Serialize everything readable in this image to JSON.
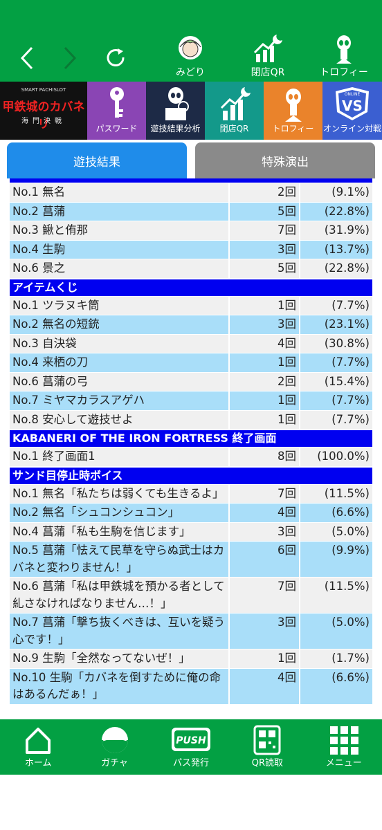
{
  "header": {
    "nav_items": [
      "みどり",
      "閉店QR",
      "トロフィー"
    ]
  },
  "menu": {
    "logo": {
      "tag": "SMART PACHISLOT",
      "title": "甲鉄城のカバネリ",
      "subtitle": "海門決戦"
    },
    "tiles": [
      "パスワード",
      "遊技結果分析",
      "閉店QR",
      "トロフィー",
      "オンライン対戦"
    ],
    "vs_badge": {
      "top": "ONLINE",
      "main": "VS"
    }
  },
  "tabs": [
    "遊技結果",
    "特殊演出"
  ],
  "sections": [
    {
      "rows": [
        [
          "No.1 無名",
          "2回",
          "(9.1%)"
        ],
        [
          "No.2 菖蒲",
          "5回",
          "(22.8%)"
        ],
        [
          "No.3 鰍と侑那",
          "7回",
          "(31.9%)"
        ],
        [
          "No.4 生駒",
          "3回",
          "(13.7%)"
        ],
        [
          "No.6 景之",
          "5回",
          "(22.8%)"
        ]
      ]
    },
    {
      "title": "アイテムくじ",
      "rows": [
        [
          "No.1 ツラヌキ筒",
          "1回",
          "(7.7%)"
        ],
        [
          "No.2 無名の短銃",
          "3回",
          "(23.1%)"
        ],
        [
          "No.3 自決袋",
          "4回",
          "(30.8%)"
        ],
        [
          "No.4 来栖の刀",
          "1回",
          "(7.7%)"
        ],
        [
          "No.6 菖蒲の弓",
          "2回",
          "(15.4%)"
        ],
        [
          "No.7 ミヤマカラスアゲハ",
          "1回",
          "(7.7%)"
        ],
        [
          "No.8 安心して遊技せよ",
          "1回",
          "(7.7%)"
        ]
      ]
    },
    {
      "title": "KABANERI OF THE IRON FORTRESS 終了画面",
      "rows": [
        [
          "No.1 終了画面1",
          "8回",
          "(100.0%)"
        ]
      ]
    },
    {
      "title": "サンド目停止時ボイス",
      "rows": [
        [
          "No.1 無名「私たちは弱くても生きるよ」",
          "7回",
          "(11.5%)"
        ],
        [
          "No.2 無名「シュコンシュコン」",
          "4回",
          "(6.6%)"
        ],
        [
          "No.4 菖蒲「私も生駒を信じます」",
          "3回",
          "(5.0%)"
        ],
        [
          "No.5 菖蒲「怯えて民草を守らぬ武士はカバネと変わりません！」",
          "6回",
          "(9.9%)"
        ],
        [
          "No.6 菖蒲「私は甲鉄城を預かる者として糺さなければなりません…！」",
          "7回",
          "(11.5%)"
        ],
        [
          "No.7 菖蒲「撃ち抜くべきは、互いを疑う心です！」",
          "3回",
          "(5.0%)"
        ],
        [
          "No.9 生駒「全然なってないぜ！」",
          "1回",
          "(1.7%)"
        ],
        [
          "No.10 生駒「カバネを倒すために俺の命はあるんだぁ！」",
          "4回",
          "(6.6%)"
        ]
      ]
    }
  ],
  "bottom_nav": [
    "ホーム",
    "ガチャ",
    "パス発行",
    "QR読取",
    "メニュー"
  ],
  "push_icon": "PUSH"
}
